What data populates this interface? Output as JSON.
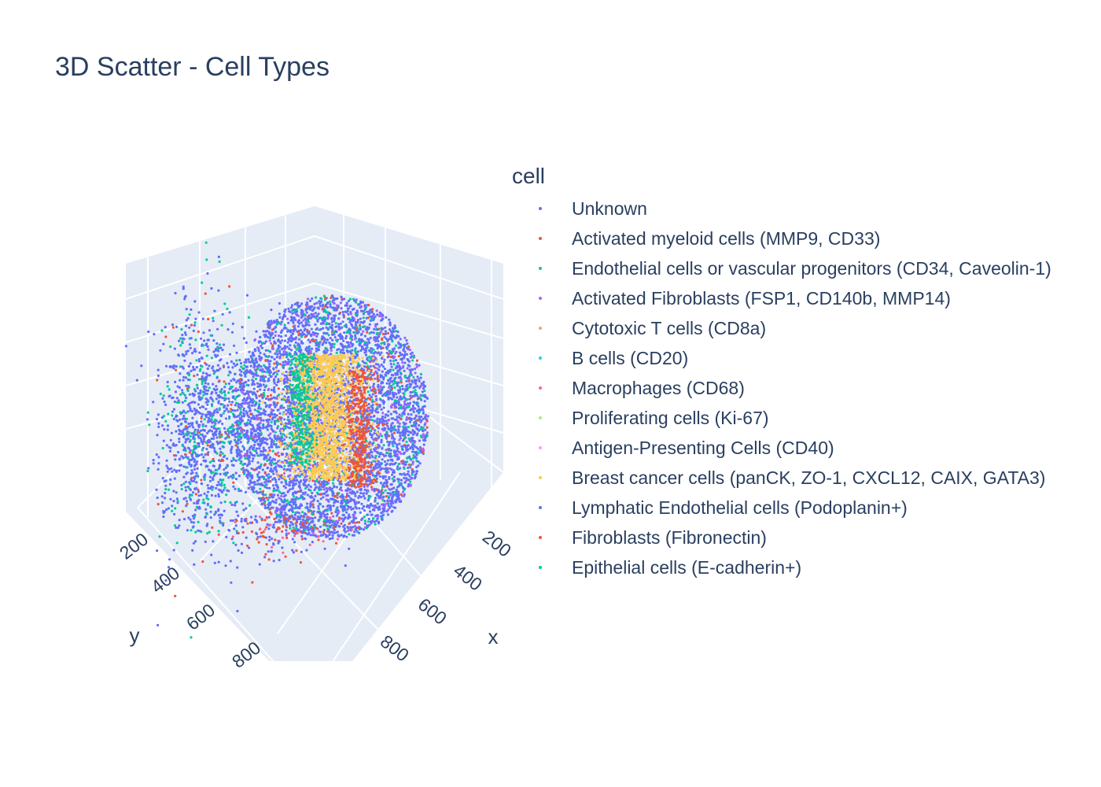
{
  "title": "3D Scatter - Cell Types",
  "chart_data": {
    "type": "scatter",
    "dimensionality": "3d",
    "title": "3D Scatter - Cell Types",
    "xlabel": "x",
    "ylabel": "y",
    "x_ticks": [
      "200",
      "400",
      "600",
      "800"
    ],
    "y_ticks": [
      "200",
      "400",
      "600",
      "800"
    ],
    "grid": true,
    "legend_title": "cell",
    "legend_position": "right",
    "series": [
      {
        "name": "Unknown",
        "color": "#636efa"
      },
      {
        "name": "Activated myeloid cells (MMP9, CD33)",
        "color": "#ef553b"
      },
      {
        "name": "Endothelial cells or vascular progenitors (CD34, Caveolin-1)",
        "color": "#00cc96"
      },
      {
        "name": "Activated Fibroblasts (FSP1, CD140b, MMP14)",
        "color": "#ab63fa"
      },
      {
        "name": "Cytotoxic T cells (CD8a)",
        "color": "#ffa15a"
      },
      {
        "name": "B cells (CD20)",
        "color": "#19d3f3"
      },
      {
        "name": "Macrophages (CD68)",
        "color": "#ff6692"
      },
      {
        "name": "Proliferating cells (Ki-67)",
        "color": "#b6e880"
      },
      {
        "name": "Antigen-Presenting Cells (CD40)",
        "color": "#ff97ff"
      },
      {
        "name": "Breast cancer cells (panCK, ZO-1, CXCL12, CAIX, GATA3)",
        "color": "#fecb52"
      },
      {
        "name": "Lymphatic Endothelial cells (Podoplanin+)",
        "color": "#636efa"
      },
      {
        "name": "Fibroblasts (Fibronectin)",
        "color": "#ef553b"
      },
      {
        "name": "Epithelial cells (E-cadherin+)",
        "color": "#00cc96"
      }
    ]
  }
}
